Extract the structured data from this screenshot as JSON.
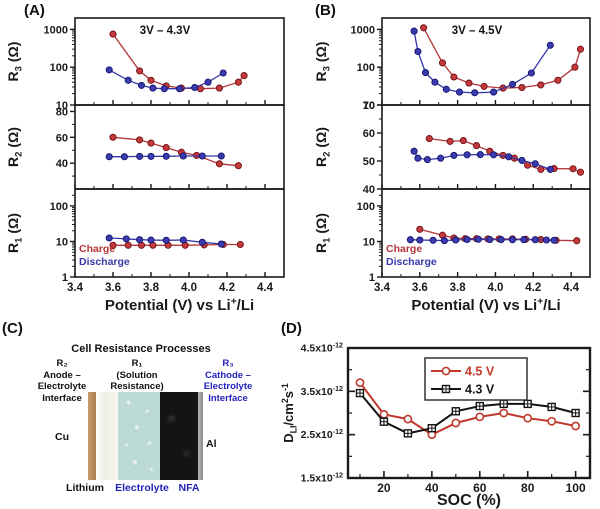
{
  "panels": {
    "a": {
      "label": "(A)"
    },
    "b": {
      "label": "(B)"
    },
    "c": {
      "label": "(C)"
    },
    "d": {
      "label": "(D)"
    }
  },
  "colors": {
    "charge": {
      "fill": "#c4393b",
      "edge": "#6e0f12",
      "line": "#b23537"
    },
    "discharge": {
      "fill": "#3b3bb0",
      "edge": "#14146e",
      "line": "#3737a8"
    },
    "axis": "#1a1a1a",
    "blue_text": "#2323bb"
  },
  "panel_c": {
    "title": "Cell Resistance Processes",
    "r2_block": "R₂\nAnode –\nElectrolyte\nInterface",
    "r1_block": "R₁\n(Solution\nResistance)",
    "r3_block": "R₃\nCathode –\nElectrolyte\nInterface",
    "cu_label": "Cu",
    "al_label": "Al",
    "lithium_label": "Lithium",
    "electrolyte_label": "Electrolyte",
    "nfa_label": "NFA"
  },
  "chart_data": [
    {
      "id": "panel-a",
      "type": "line",
      "title": "3V – 4.3V",
      "xlim": [
        3.4,
        4.5
      ],
      "xticks": [
        3.4,
        3.6,
        3.8,
        4.0,
        4.2,
        4.4
      ],
      "xminor": [
        3.5,
        3.7,
        3.9,
        4.1,
        4.3,
        4.5
      ],
      "xlabel_parts": [
        {
          "t": "Potential (V) vs Li"
        },
        {
          "t": "+",
          "s": "sup"
        },
        {
          "t": "/Li"
        }
      ],
      "legend": {
        "charge": "Charge",
        "discharge": "Discharge"
      },
      "subplots": [
        {
          "ylabel_parts": [
            {
              "t": "R"
            },
            {
              "t": "3",
              "s": "sub"
            },
            {
              "t": " (Ω)"
            }
          ],
          "scale": "log",
          "ylim": [
            10,
            2000
          ],
          "yticks": [
            10,
            100,
            1000
          ],
          "series": [
            {
              "name": "Charge",
              "color": "charge",
              "x": [
                3.6,
                3.74,
                3.8,
                3.88,
                3.96,
                4.06,
                4.16,
                4.26,
                4.29
              ],
              "y": [
                750,
                80,
                45,
                32,
                28,
                27,
                28,
                40,
                60
              ]
            },
            {
              "name": "Discharge",
              "color": "discharge",
              "x": [
                3.58,
                3.68,
                3.75,
                3.81,
                3.87,
                3.95,
                4.03,
                4.1,
                4.18
              ],
              "y": [
                85,
                45,
                33,
                28,
                27,
                27,
                29,
                40,
                70
              ]
            }
          ]
        },
        {
          "ylabel_parts": [
            {
              "t": "R"
            },
            {
              "t": "2",
              "s": "sub"
            },
            {
              "t": " (Ω)"
            }
          ],
          "scale": "linear",
          "ylim": [
            20,
            85
          ],
          "yticks": [
            40,
            60,
            80
          ],
          "yminor": [
            30,
            50,
            70
          ],
          "series": [
            {
              "name": "Charge",
              "color": "charge",
              "x": [
                3.6,
                3.74,
                3.8,
                3.88,
                3.96,
                4.04,
                4.16,
                4.26
              ],
              "y": [
                60,
                58,
                55.5,
                52,
                48.5,
                46,
                39.5,
                38
              ]
            },
            {
              "name": "Discharge",
              "color": "discharge",
              "x": [
                3.58,
                3.66,
                3.74,
                3.8,
                3.88,
                3.97,
                4.07,
                4.17
              ],
              "y": [
                45,
                45,
                45.2,
                45.2,
                45.3,
                45.5,
                45.5,
                45.5
              ]
            }
          ]
        },
        {
          "ylabel_parts": [
            {
              "t": "R"
            },
            {
              "t": "1",
              "s": "sub"
            },
            {
              "t": " (Ω)"
            }
          ],
          "scale": "log",
          "ylim": [
            1,
            300
          ],
          "yticks": [
            1,
            10,
            100
          ],
          "show_legend": true,
          "series": [
            {
              "name": "Charge",
              "color": "charge",
              "x": [
                3.6,
                3.68,
                3.75,
                3.81,
                3.89,
                3.98,
                4.08,
                4.18,
                4.27
              ],
              "y": [
                7.8,
                7.8,
                7.8,
                7.8,
                7.8,
                7.8,
                8.0,
                8.2,
                8.2
              ]
            },
            {
              "name": "Discharge",
              "color": "discharge",
              "x": [
                3.58,
                3.67,
                3.74,
                3.8,
                3.88,
                3.97,
                4.07,
                4.17
              ],
              "y": [
                12.5,
                11.8,
                11.2,
                11.0,
                10.8,
                11.0,
                9.5,
                8.5
              ]
            }
          ]
        }
      ]
    },
    {
      "id": "panel-b",
      "type": "line",
      "title": "3V – 4.5V",
      "xlim": [
        3.4,
        4.5
      ],
      "xticks": [
        3.4,
        3.6,
        3.8,
        4.0,
        4.2,
        4.4
      ],
      "xminor": [
        3.5,
        3.7,
        3.9,
        4.1,
        4.3,
        4.5
      ],
      "xlabel_parts": [
        {
          "t": "Potential (V) vs Li"
        },
        {
          "t": "+",
          "s": "sup"
        },
        {
          "t": "/Li"
        }
      ],
      "legend": {
        "charge": "Charge",
        "discharge": "Discharge"
      },
      "subplots": [
        {
          "ylabel_parts": [
            {
              "t": "R"
            },
            {
              "t": "3",
              "s": "sub"
            },
            {
              "t": " (Ω)"
            }
          ],
          "scale": "log",
          "ylim": [
            10,
            2000
          ],
          "yticks": [
            10,
            100,
            1000
          ],
          "series": [
            {
              "name": "Charge",
              "color": "charge",
              "x": [
                3.62,
                3.72,
                3.78,
                3.86,
                3.94,
                4.04,
                4.14,
                4.24,
                4.33,
                4.42,
                4.45
              ],
              "y": [
                1100,
                130,
                55,
                38,
                31,
                28,
                29,
                34,
                45,
                100,
                300
              ]
            },
            {
              "name": "Discharge",
              "color": "discharge",
              "x": [
                3.57,
                3.59,
                3.63,
                3.68,
                3.74,
                3.81,
                3.89,
                3.99,
                4.09,
                4.19,
                4.29
              ],
              "y": [
                900,
                260,
                72,
                40,
                26,
                22,
                21,
                22,
                35,
                70,
                380
              ]
            }
          ]
        },
        {
          "ylabel_parts": [
            {
              "t": "R"
            },
            {
              "t": "2",
              "s": "sub"
            },
            {
              "t": " (Ω)"
            }
          ],
          "scale": "linear",
          "ylim": [
            40,
            70
          ],
          "yticks": [
            40,
            50,
            60,
            70
          ],
          "yminor": [
            45,
            55,
            65
          ],
          "series": [
            {
              "name": "Charge",
              "color": "charge",
              "x": [
                3.65,
                3.76,
                3.83,
                3.9,
                3.97,
                4.04,
                4.1,
                4.17,
                4.24,
                4.31,
                4.41,
                4.45
              ],
              "y": [
                58,
                57,
                57.3,
                55.5,
                53.5,
                52,
                51,
                48.5,
                47,
                47.3,
                47.2,
                46
              ]
            },
            {
              "name": "Discharge",
              "color": "discharge",
              "x": [
                3.57,
                3.59,
                3.64,
                3.71,
                3.78,
                3.85,
                3.92,
                3.99,
                4.07,
                4.14,
                4.21,
                4.29
              ],
              "y": [
                53.5,
                51,
                50.5,
                51,
                52,
                52.2,
                52.3,
                52.2,
                51.5,
                50.2,
                49,
                47
              ]
            }
          ]
        },
        {
          "ylabel_parts": [
            {
              "t": "R"
            },
            {
              "t": "1",
              "s": "sub"
            },
            {
              "t": " (Ω)"
            }
          ],
          "scale": "log",
          "ylim": [
            1,
            300
          ],
          "yticks": [
            1,
            10,
            100
          ],
          "show_legend": true,
          "series": [
            {
              "name": "Charge",
              "color": "charge",
              "x": [
                3.6,
                3.72,
                3.78,
                3.84,
                3.9,
                3.96,
                4.02,
                4.09,
                4.16,
                4.24,
                4.32,
                4.43
              ],
              "y": [
                22,
                15,
                12.5,
                12,
                12,
                11.8,
                11.8,
                11.8,
                11.5,
                11.3,
                10.8,
                10.5
              ]
            },
            {
              "name": "Discharge",
              "color": "discharge",
              "x": [
                3.55,
                3.6,
                3.67,
                3.73,
                3.79,
                3.85,
                3.91,
                3.97,
                4.03,
                4.09,
                4.15,
                4.21,
                4.27,
                4.31
              ],
              "y": [
                11.2,
                11.0,
                10.8,
                10.6,
                11.0,
                11.4,
                11.5,
                11.3,
                11.3,
                11.2,
                11.3,
                11.2,
                11.0,
                10.8
              ]
            }
          ]
        }
      ]
    },
    {
      "id": "panel-d",
      "type": "line",
      "xlabel": "SOC (%)",
      "ylabel_parts": [
        {
          "t": "D"
        },
        {
          "t": "LI",
          "s": "sub"
        },
        {
          "t": "/cm"
        },
        {
          "t": "2",
          "s": "sup"
        },
        {
          "t": "s"
        },
        {
          "t": "-1",
          "s": "sup"
        }
      ],
      "xlim": [
        5,
        106
      ],
      "xticks": [
        20,
        40,
        60,
        80,
        100
      ],
      "xminor": [
        10,
        30,
        50,
        70,
        90
      ],
      "ylim": [
        1.5,
        4.5
      ],
      "y_unit_exponent": "-12",
      "yticks": [
        {
          "v": 1.5,
          "m": "1.5x10",
          "e": "-12"
        },
        {
          "v": 2.5,
          "m": "2.5x10",
          "e": "-12"
        },
        {
          "v": 3.5,
          "m": "3.5x10",
          "e": "-12"
        },
        {
          "v": 4.5,
          "m": "4.5x10",
          "e": "-12"
        }
      ],
      "yminor": [
        2.0,
        3.0,
        4.0
      ],
      "series": [
        {
          "name": "4.5 V",
          "color": "#c0392b",
          "marker": "open-circle",
          "x": [
            10,
            20,
            30,
            40,
            50,
            60,
            70,
            80,
            90,
            100
          ],
          "y": [
            3.7,
            2.97,
            2.86,
            2.5,
            2.77,
            2.91,
            3.0,
            2.88,
            2.81,
            2.7
          ]
        },
        {
          "name": "4.3 V",
          "color": "#141414",
          "marker": "open-square-plus",
          "x": [
            10,
            20,
            30,
            40,
            50,
            60,
            70,
            80,
            90,
            100
          ],
          "y": [
            3.46,
            2.8,
            2.53,
            2.65,
            3.04,
            3.16,
            3.21,
            3.21,
            3.14,
            3.0
          ]
        }
      ],
      "legend_position": "top-center"
    }
  ]
}
